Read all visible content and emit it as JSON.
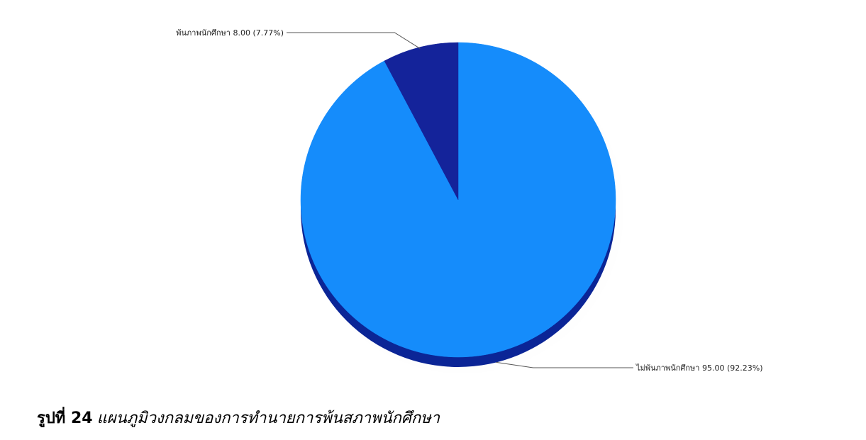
{
  "caption": {
    "label": "รูปที่ 24",
    "text": "แผนภูมิวงกลมของการทำนายการพ้นสภาพนักศึกษา"
  },
  "chart_data": {
    "type": "pie",
    "slices": [
      {
        "name": "พ้นภาพนักศึกษา",
        "value": 8.0,
        "percent": 7.77,
        "display": "พ้นภาพนักศึกษา 8.00 (7.77%)",
        "color": "#14239a"
      },
      {
        "name": "ไม่พ้นภาพนักศึกษา",
        "value": 95.0,
        "percent": 92.23,
        "display": "ไม่พ้นภาพนักศึกษา 95.00 (92.23%)",
        "color": "#158cfb"
      }
    ],
    "shadow_color": "#0b2596"
  }
}
